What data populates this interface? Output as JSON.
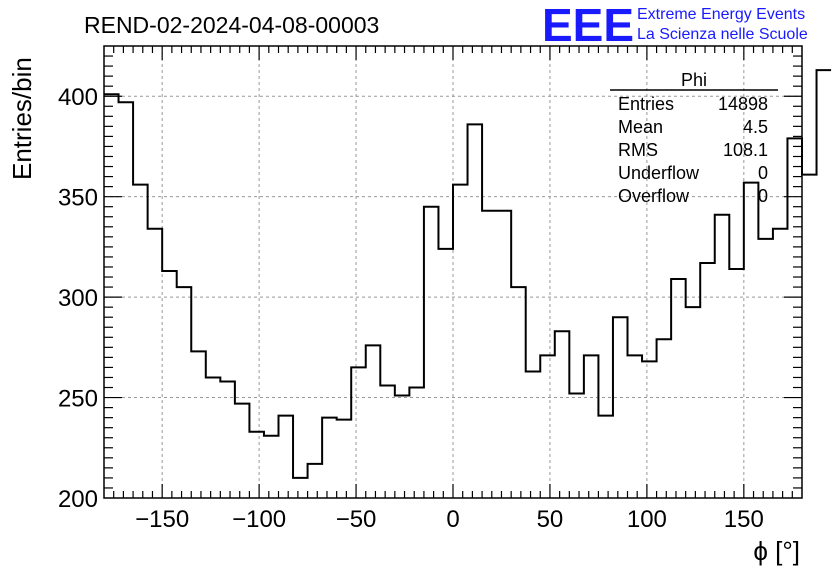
{
  "run_title": "REND-02-2024-04-08-00003",
  "logo": {
    "text": "EEE",
    "line1": "Extreme Energy Events",
    "line2": "La Scienza nelle Scuole",
    "color": "#1a1aff"
  },
  "stats_box": {
    "title": "Phi",
    "rows": [
      {
        "label": "Entries",
        "value": "14898"
      },
      {
        "label": "Mean",
        "value": "4.5"
      },
      {
        "label": "RMS",
        "value": "108.1"
      },
      {
        "label": "Underflow",
        "value": "0"
      },
      {
        "label": "Overflow",
        "value": "0"
      }
    ]
  },
  "chart_data": {
    "type": "histogram",
    "title": "REND-02-2024-04-08-00003",
    "xlabel": "ϕ [°]",
    "ylabel": "Entries/bin",
    "xlim": [
      -180,
      180
    ],
    "ylim": [
      200,
      425
    ],
    "x_ticks": [
      -150,
      -100,
      -50,
      0,
      50,
      100,
      150
    ],
    "x_tick_labels": [
      "−150",
      "−100",
      "−50",
      "0",
      "50",
      "100",
      "150"
    ],
    "y_ticks": [
      200,
      250,
      300,
      350,
      400
    ],
    "y_tick_labels": [
      "200",
      "250",
      "300",
      "350",
      "400"
    ],
    "grid": true,
    "bin_width": 7.5,
    "bin_edges_start": -180,
    "values": [
      401,
      397,
      356,
      334,
      313,
      305,
      273,
      260,
      258,
      247,
      233,
      231,
      241,
      210,
      217,
      240,
      239,
      265,
      276,
      256,
      251,
      255,
      345,
      324,
      356,
      386,
      343,
      343,
      305,
      263,
      271,
      283,
      252,
      271,
      241,
      290,
      271,
      268,
      279,
      309,
      295,
      317,
      341,
      314,
      357,
      329,
      334,
      379,
      361,
      413
    ],
    "line_color": "#000000",
    "grid_color": "#999999"
  }
}
